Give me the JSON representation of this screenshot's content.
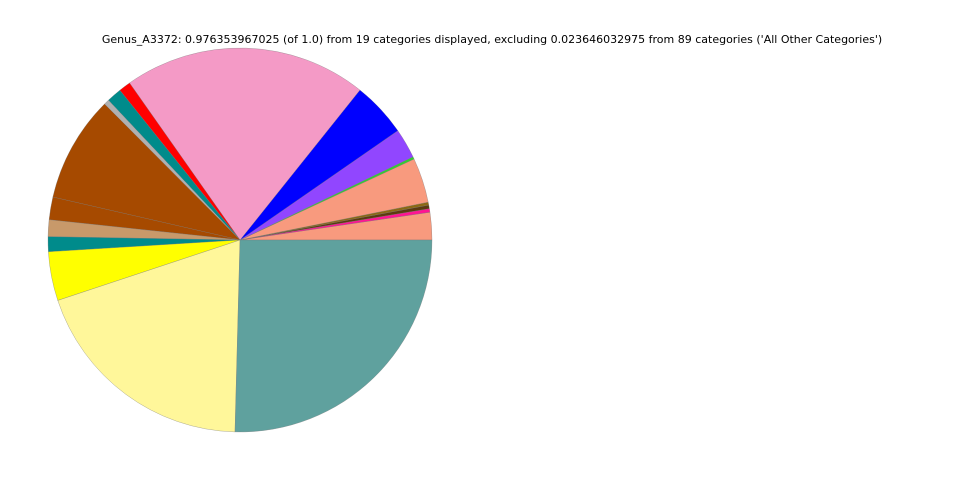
{
  "chart_data": {
    "type": "pie",
    "title": "Genus_A3372: 0.976353967025 (of 1.0) from 19 categories displayed, excluding 0.023646032975 from 89 categories ('All Other Categories')",
    "start_angle": 0,
    "counterclockwise": true,
    "values": [
      2.3,
      0.3,
      0.3,
      0.25,
      3.75,
      0.2,
      2.5,
      4.6,
      20.4,
      1.0,
      1.25,
      0.45,
      8.9,
      1.9,
      1.4,
      1.25,
      4.1,
      19.4,
      25.3
    ],
    "colors": [
      "#f89a7e",
      "#ff1493",
      "#5c3a10",
      "#8b6914",
      "#f89a7e",
      "#32cd32",
      "#9146ff",
      "#0000ff",
      "#f49ac6",
      "#ff0000",
      "#008b8b",
      "#b0b0b0",
      "#a64a00",
      "#a64a00",
      "#c8996a",
      "#008b8b",
      "#ffff00",
      "#fff79a",
      "#5fa19e"
    ]
  }
}
